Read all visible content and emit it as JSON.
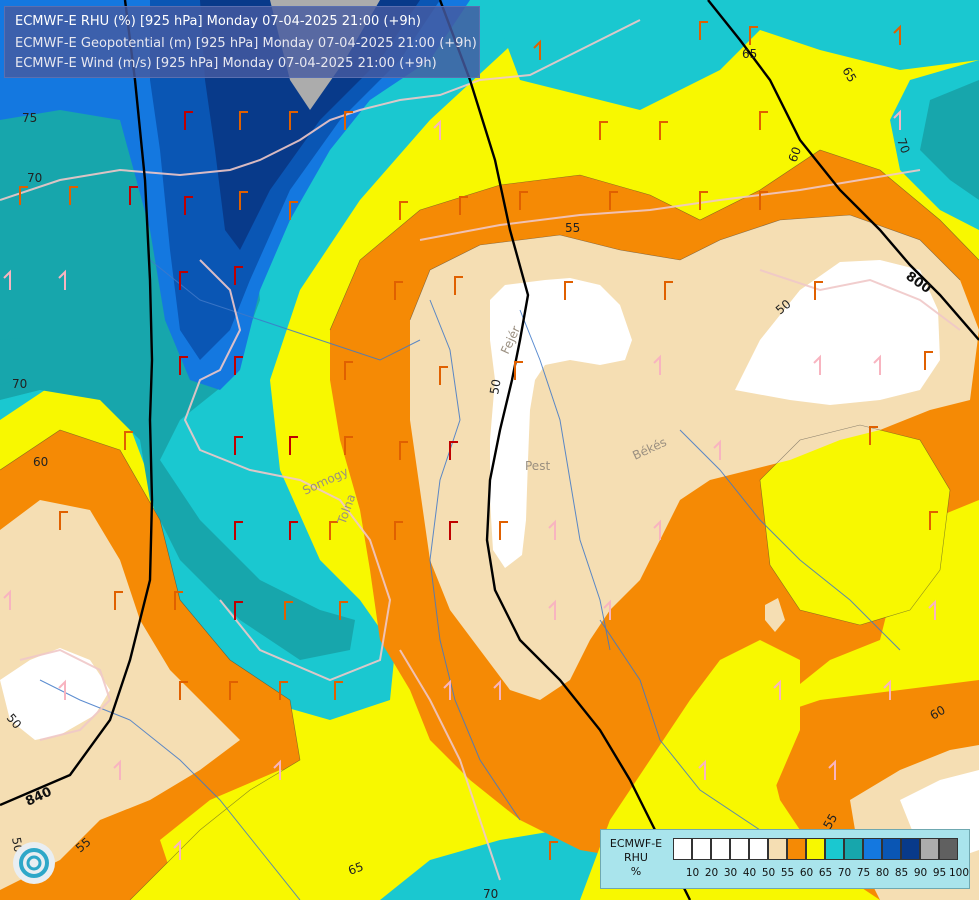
{
  "header": {
    "line1": "ECMWF-E RHU (%) [925 hPa] Monday 07-04-2025 21:00 (+9h)",
    "line2": "ECMWF-E Geopotential (m) [925 hPa] Monday 07-04-2025 21:00 (+9h)",
    "line3": "ECMWF-E Wind (m/s) [925 hPa] Monday 07-04-2025 21:00 (+9h)"
  },
  "legend": {
    "model": "ECMWF-E",
    "var": "RHU",
    "unit": "%",
    "classes": [
      {
        "label": "10",
        "color": "#ffffff"
      },
      {
        "label": "20",
        "color": "#ffffff"
      },
      {
        "label": "30",
        "color": "#ffffff"
      },
      {
        "label": "40",
        "color": "#ffffff"
      },
      {
        "label": "50",
        "color": "#ffffff"
      },
      {
        "label": "55",
        "color": "#f5deb3"
      },
      {
        "label": "60",
        "color": "#f58a05"
      },
      {
        "label": "65",
        "color": "#f8f800"
      },
      {
        "label": "70",
        "color": "#1ac8d0"
      },
      {
        "label": "75",
        "color": "#17a6ac"
      },
      {
        "label": "80",
        "color": "#1478e0"
      },
      {
        "label": "85",
        "color": "#0a56b4"
      },
      {
        "label": "90",
        "color": "#083a8a"
      },
      {
        "label": "95",
        "color": "#acacac"
      },
      {
        "label": "100",
        "color": "#606060"
      }
    ]
  },
  "contour_labels": {
    "geo_840": "840",
    "geo_800": "800",
    "rh_75": "75",
    "rh_70": "70",
    "rh_70b": "70",
    "rh_60": "60",
    "rh_50a": "50",
    "rh_50b": "50",
    "rh_50c": "50",
    "rh_55": "55",
    "rh_55b": "55",
    "rh_55c": "55",
    "rh_65": "65",
    "rh_65b": "65",
    "rh_60b": "60",
    "rh_70c": "70",
    "rh_60c": "60",
    "rh_50d": "50",
    "rh_65c": "65",
    "rh_70d": "70"
  },
  "places": {
    "pest": "Pest",
    "bekes": "Békés",
    "somogy": "Somogy",
    "tolna": "Tolna",
    "fejer": "Fejér"
  }
}
